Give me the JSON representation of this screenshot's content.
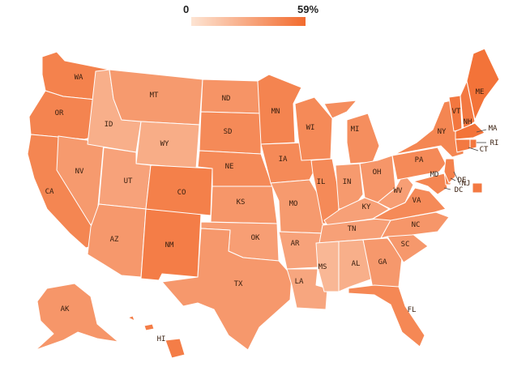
{
  "legend": {
    "min_label": "0",
    "max_label": "59%",
    "color_low": "#fde4d3",
    "color_high": "#f26b2e",
    "min_value": 0,
    "max_value": 59
  },
  "states": {
    "WA": 48,
    "OR": 47,
    "CA": 46,
    "NV": 36,
    "ID": 26,
    "MT": 36,
    "WY": 27,
    "UT": 32,
    "AZ": 37,
    "NM": 50,
    "CO": 49,
    "ND": 39,
    "SD": 44,
    "NE": 44,
    "KS": 38,
    "OK": 34,
    "TX": 37,
    "MN": 47,
    "IA": 44,
    "MO": 36,
    "AR": 32,
    "LA": 30,
    "WI": 44,
    "IL": 44,
    "MS": 22,
    "MI": 42,
    "IN": 36,
    "OH": 38,
    "KY": 33,
    "TN": 33,
    "AL": 26,
    "GA": 37,
    "FL": 45,
    "SC": 37,
    "NC": 38,
    "VA": 44,
    "WV": 34,
    "PA": 44,
    "NY": 46,
    "VT": 53,
    "NH": 52,
    "ME": 55,
    "MA": 55,
    "RI": 53,
    "CT": 52,
    "NJ": 48,
    "DE": 46,
    "MD": 46,
    "DC": 52,
    "AK": 38,
    "HI": 50
  }
}
